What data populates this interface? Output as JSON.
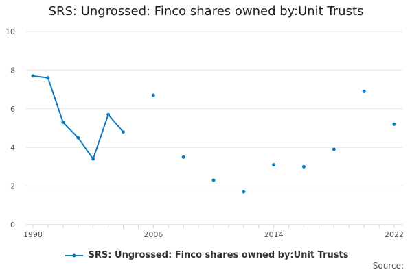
{
  "chart_data": {
    "type": "line",
    "title": "SRS: Ungrossed: Finco shares owned by:Unit Trusts",
    "xlabel": "",
    "ylabel": "",
    "xlim": [
      1998,
      2022
    ],
    "ylim": [
      0,
      10
    ],
    "x_ticks": [
      1998,
      2006,
      2014,
      2022
    ],
    "y_ticks": [
      0,
      2,
      4,
      6,
      8,
      10
    ],
    "grid": true,
    "legend_position": "bottom",
    "series": [
      {
        "name": "SRS: Ungrossed: Finco shares owned by:Unit Trusts",
        "color": "#0b7bbd",
        "points": [
          {
            "x": 1998,
            "y": 7.7
          },
          {
            "x": 1999,
            "y": 7.6
          },
          {
            "x": 2000,
            "y": 5.3
          },
          {
            "x": 2001,
            "y": 4.5
          },
          {
            "x": 2002,
            "y": 3.4
          },
          {
            "x": 2003,
            "y": 5.7
          },
          {
            "x": 2004,
            "y": 4.8
          },
          {
            "x": 2005,
            "y": null
          },
          {
            "x": 2006,
            "y": 6.7
          },
          {
            "x": 2007,
            "y": null
          },
          {
            "x": 2008,
            "y": 3.5
          },
          {
            "x": 2009,
            "y": null
          },
          {
            "x": 2010,
            "y": 2.3
          },
          {
            "x": 2011,
            "y": null
          },
          {
            "x": 2012,
            "y": 1.7
          },
          {
            "x": 2013,
            "y": null
          },
          {
            "x": 2014,
            "y": 3.1
          },
          {
            "x": 2015,
            "y": null
          },
          {
            "x": 2016,
            "y": 3.0
          },
          {
            "x": 2017,
            "y": null
          },
          {
            "x": 2018,
            "y": 3.9
          },
          {
            "x": 2019,
            "y": null
          },
          {
            "x": 2020,
            "y": 6.9
          },
          {
            "x": 2021,
            "y": null
          },
          {
            "x": 2022,
            "y": 5.2
          }
        ]
      }
    ]
  },
  "footer": {
    "source_label": "Source:"
  }
}
